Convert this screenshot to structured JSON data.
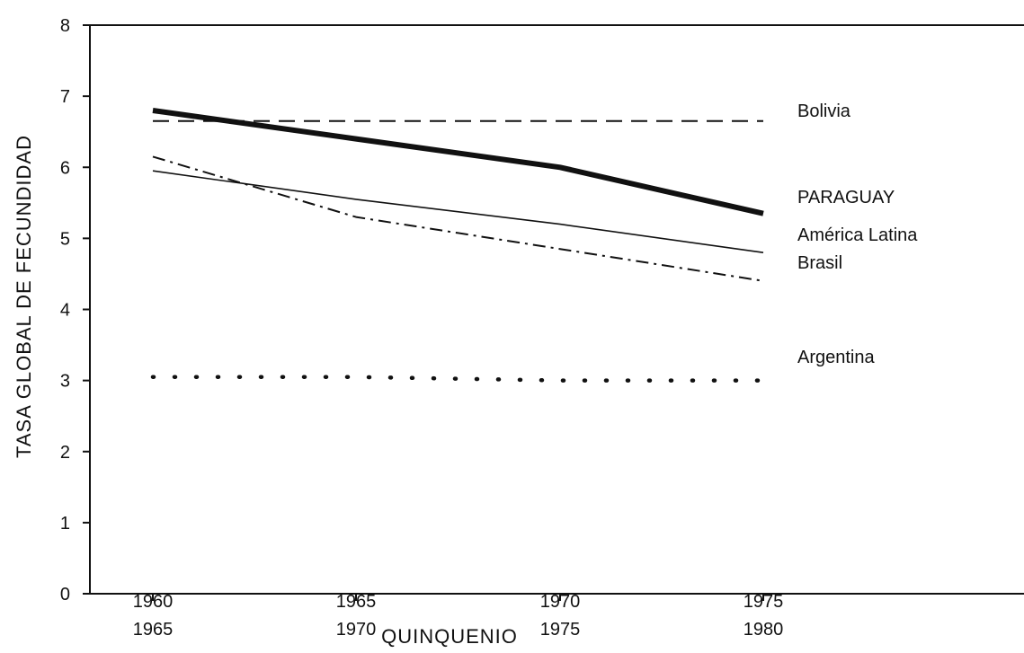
{
  "chart_data": {
    "type": "line",
    "title": "",
    "xlabel": "QUINQUENIO",
    "ylabel": "TASA GLOBAL DE FECUNDIDAD",
    "ylim": [
      0,
      8
    ],
    "yticks": [
      "0",
      "1",
      "2",
      "3",
      "4",
      "5",
      "6",
      "7",
      "8"
    ],
    "categories": [
      {
        "line1": "1960",
        "line2": "1965"
      },
      {
        "line1": "1965",
        "line2": "1970"
      },
      {
        "line1": "1970",
        "line2": "1975"
      },
      {
        "line1": "1975",
        "line2": "1980"
      }
    ],
    "grid": false,
    "legend": "inline labels at right end of lines",
    "series": [
      {
        "name": "Bolivia",
        "style": "dashed",
        "values": [
          6.65,
          6.65,
          6.65,
          6.65
        ]
      },
      {
        "name": "PARAGUAY",
        "style": "thick",
        "values": [
          6.8,
          6.4,
          6.0,
          5.35
        ]
      },
      {
        "name": "América Latina",
        "style": "thin",
        "values": [
          5.95,
          5.55,
          5.2,
          4.8
        ]
      },
      {
        "name": "Brasil",
        "style": "dash-dot",
        "values": [
          6.15,
          5.3,
          4.85,
          4.4
        ]
      },
      {
        "name": "Argentina",
        "style": "dotted",
        "values": [
          3.05,
          3.05,
          3.0,
          3.0
        ]
      }
    ]
  }
}
